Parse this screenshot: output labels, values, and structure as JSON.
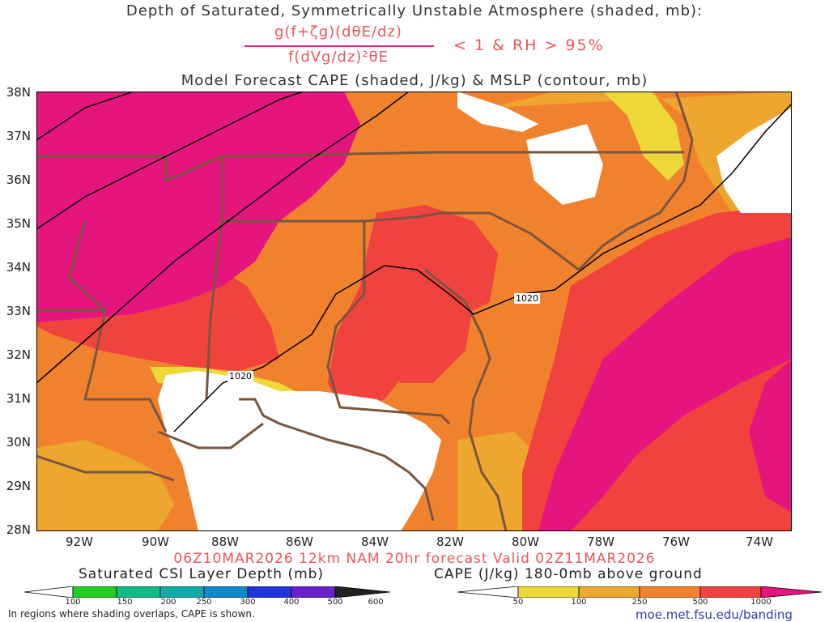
{
  "titles": {
    "line1": "Depth of Saturated, Symmetrically Unstable Atmosphere (shaded, mb):",
    "numerator": "g(f+ζg)(dθE/dz)",
    "denominator": "f(dVg/dz)²θE",
    "condition": "< 1 & RH > 95%",
    "line3": "Model Forecast CAPE (shaded, J/kg) & MSLP (contour, mb)"
  },
  "valid_line": "06Z10MAR2026 12km NAM 20hr forecast Valid 02Z11MAR2026",
  "lat_labels": [
    "38N",
    "37N",
    "36N",
    "35N",
    "34N",
    "33N",
    "32N",
    "31N",
    "30N",
    "29N",
    "28N"
  ],
  "lon_labels": [
    "92W",
    "90W",
    "88W",
    "86W",
    "84W",
    "82W",
    "80W",
    "78W",
    "76W",
    "74W"
  ],
  "contour_labels": [
    "1020",
    "1020"
  ],
  "colorbar_csi": {
    "title": "Saturated CSI Layer Depth (mb)",
    "ticks": [
      "100",
      "150",
      "200",
      "250",
      "300",
      "400",
      "500",
      "600"
    ],
    "colors": [
      "#ffffff",
      "#22cc22",
      "#11bb88",
      "#11aaaa",
      "#1188cc",
      "#2233dd",
      "#6622cc",
      "#222222"
    ]
  },
  "colorbar_cape": {
    "title": "CAPE (J/kg) 180-0mb above ground",
    "ticks": [
      "50",
      "100",
      "250",
      "500",
      "1000"
    ],
    "colors": [
      "#ffffff",
      "#ecd836",
      "#eda62e",
      "#f0822e",
      "#f0433e",
      "#e6157e"
    ]
  },
  "colors": {
    "cape_50": "#ecd836",
    "cape_100": "#eda62e",
    "cape_250": "#f0822e",
    "cape_500": "#f0433e",
    "cape_1000": "#e6157e",
    "state_borders": "#7a5540",
    "isobar": "#000000"
  },
  "footer_note": "In regions where shading overlaps, CAPE is shown.",
  "source_url": "moe.met.fsu.edu/banding"
}
